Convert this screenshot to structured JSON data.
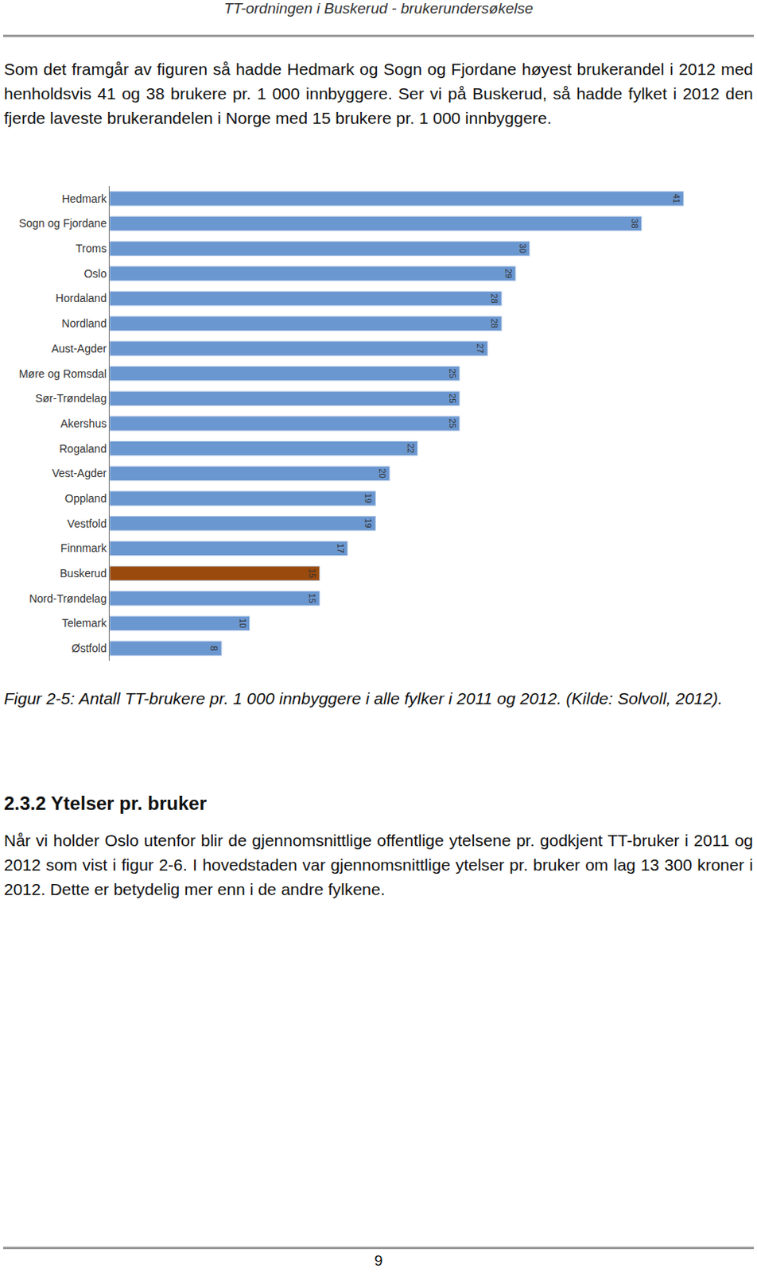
{
  "header": "TT-ordningen i Buskerud - brukerundersøkelse",
  "intro": "Som det framgår av figuren så hadde Hedmark og Sogn og Fjordane høyest brukerandel i 2012 med henholdsvis 41 og 38 brukere pr. 1 000 innbyggere. Ser vi på Buskerud, så hadde fylket i 2012 den fjerde laveste brukerandelen i Norge med 15 brukere pr. 1 000 innbyggere.",
  "chart_data": {
    "type": "bar",
    "orientation": "horizontal",
    "categories": [
      "Hedmark",
      "Sogn og Fjordane",
      "Troms",
      "Oslo",
      "Hordaland",
      "Nordland",
      "Aust-Agder",
      "Møre og Romsdal",
      "Sør-Trøndelag",
      "Akershus",
      "Rogaland",
      "Vest-Agder",
      "Oppland",
      "Vestfold",
      "Finnmark",
      "Buskerud",
      "Nord-Trøndelag",
      "Telemark",
      "Østfold"
    ],
    "values": [
      41,
      38,
      30,
      29,
      28,
      28,
      27,
      25,
      25,
      25,
      22,
      20,
      19,
      19,
      17,
      15,
      15,
      10,
      8
    ],
    "colors": [
      "#6a97d0",
      "#6a97d0",
      "#6a97d0",
      "#6a97d0",
      "#6a97d0",
      "#6a97d0",
      "#6a97d0",
      "#6a97d0",
      "#6a97d0",
      "#6a97d0",
      "#6a97d0",
      "#6a97d0",
      "#6a97d0",
      "#6a97d0",
      "#6a97d0",
      "#9a4a0c",
      "#6a97d0",
      "#6a97d0",
      "#6a97d0"
    ],
    "xlim": [
      0,
      41
    ],
    "data_labels": true,
    "tick_labels": "y",
    "grid": false
  },
  "caption": "Figur 2-5: Antall TT-brukere pr. 1 000 innbyggere i alle fylker i 2011 og 2012. (Kilde: Solvoll, 2012).",
  "section": {
    "number": "2.3.2",
    "title": "Ytelser pr. bruker"
  },
  "body": "Når vi holder Oslo utenfor blir de gjennomsnittlige offentlige ytelsene pr. godkjent TT-bruker i 2011 og 2012 som vist i figur 2-6. I hovedstaden var gjennomsnittlige ytelser pr. bruker om lag 13 300 kroner i 2012. Dette er betydelig mer enn i de andre fylkene.",
  "page_number": "9"
}
